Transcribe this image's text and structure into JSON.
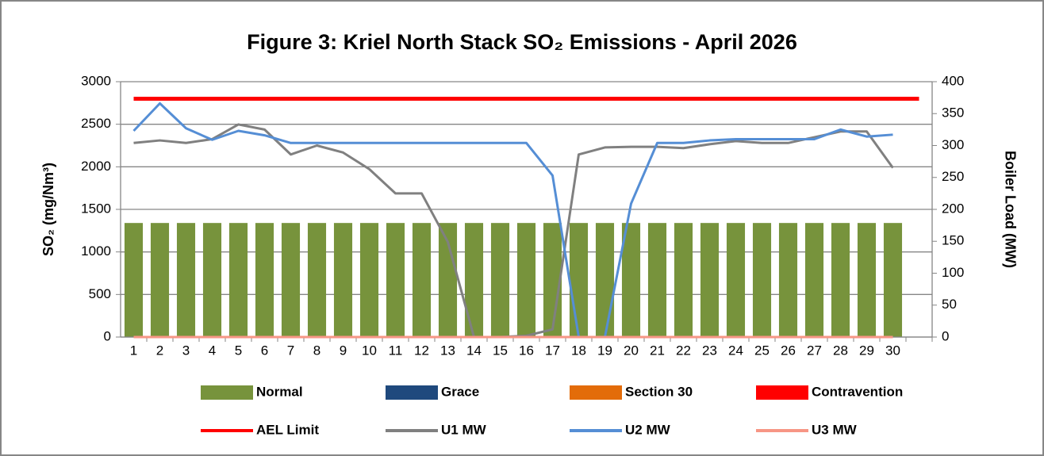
{
  "chart_data": {
    "type": "bar",
    "title": "Figure 3: Kriel North Stack SO₂ Emissions - April 2026",
    "y_label": "SO₂  (mg/Nm³)",
    "y2_label": "Boiler Load (MW)",
    "categories": [
      1,
      2,
      3,
      4,
      5,
      6,
      7,
      8,
      9,
      10,
      11,
      12,
      13,
      14,
      15,
      16,
      17,
      18,
      19,
      20,
      21,
      22,
      23,
      24,
      25,
      26,
      27,
      28,
      29,
      30,
      null
    ],
    "ylim": [
      0,
      3000
    ],
    "yticks": [
      0,
      500,
      1000,
      1500,
      2000,
      2500,
      3000
    ],
    "y2lim": [
      0,
      400
    ],
    "y2ticks": [
      0,
      50,
      100,
      150,
      200,
      250,
      300,
      350,
      400
    ],
    "grid": true,
    "legend": "bottom",
    "series": [
      {
        "name": "Normal",
        "type": "bar",
        "color": "#77933c",
        "values": [
          1340,
          1340,
          1340,
          1340,
          1340,
          1340,
          1340,
          1340,
          1340,
          1340,
          1340,
          1340,
          1340,
          1340,
          1340,
          1340,
          1340,
          1340,
          1340,
          1340,
          1340,
          1340,
          1340,
          1340,
          1340,
          1340,
          1340,
          1340,
          1340,
          1340,
          null
        ]
      },
      {
        "name": "Grace",
        "type": "bar",
        "color": "#1f497d",
        "values": [
          0,
          0,
          0,
          0,
          0,
          0,
          0,
          0,
          0,
          0,
          0,
          0,
          0,
          0,
          0,
          0,
          0,
          0,
          0,
          0,
          0,
          0,
          0,
          0,
          0,
          0,
          0,
          0,
          0,
          0,
          null
        ]
      },
      {
        "name": "Section 30",
        "type": "bar",
        "color": "#e36c09",
        "values": [
          0,
          0,
          0,
          0,
          0,
          0,
          0,
          0,
          0,
          0,
          0,
          0,
          0,
          0,
          0,
          0,
          0,
          0,
          0,
          0,
          0,
          0,
          0,
          0,
          0,
          0,
          0,
          0,
          0,
          0,
          null
        ]
      },
      {
        "name": "Contravention",
        "type": "bar",
        "color": "#ff0000",
        "values": [
          0,
          0,
          0,
          0,
          0,
          0,
          0,
          0,
          0,
          0,
          0,
          0,
          0,
          0,
          0,
          0,
          0,
          0,
          0,
          0,
          0,
          0,
          0,
          0,
          0,
          0,
          0,
          0,
          0,
          0,
          null
        ]
      },
      {
        "name": "AEL Limit",
        "type": "line",
        "color": "#ff0000",
        "values": [
          2800,
          2800,
          2800,
          2800,
          2800,
          2800,
          2800,
          2800,
          2800,
          2800,
          2800,
          2800,
          2800,
          2800,
          2800,
          2800,
          2800,
          2800,
          2800,
          2800,
          2800,
          2800,
          2800,
          2800,
          2800,
          2800,
          2800,
          2800,
          2800,
          2800,
          2800
        ]
      },
      {
        "name": "U1 MW",
        "type": "line",
        "axis": "y2",
        "color": "#808080",
        "values": [
          304,
          308,
          304,
          310,
          333,
          325,
          286,
          300,
          289,
          263,
          225,
          225,
          149,
          0,
          0,
          2,
          12,
          286,
          297,
          298,
          298,
          296,
          302,
          307,
          304,
          304,
          313,
          322,
          322,
          265,
          null
        ]
      },
      {
        "name": "U2 MW",
        "type": "line",
        "axis": "y2",
        "color": "#558ed5",
        "values": [
          323,
          366,
          327,
          309,
          323,
          316,
          304,
          304,
          304,
          304,
          304,
          304,
          304,
          304,
          304,
          304,
          253,
          0,
          0,
          209,
          304,
          304,
          308,
          310,
          310,
          310,
          310,
          325,
          314,
          317,
          null
        ]
      },
      {
        "name": "U3 MW",
        "type": "line",
        "axis": "y2",
        "color": "#f79685",
        "values": [
          0,
          0,
          0,
          0,
          0,
          0,
          0,
          0,
          0,
          0,
          0,
          0,
          0,
          0,
          0,
          0,
          0,
          0,
          0,
          0,
          0,
          0,
          0,
          0,
          0,
          0,
          0,
          0,
          0,
          0,
          null
        ]
      }
    ]
  }
}
